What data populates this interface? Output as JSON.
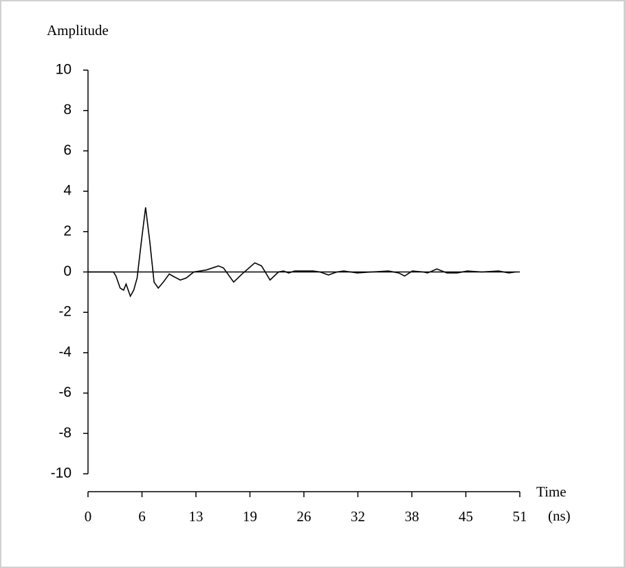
{
  "chart_data": {
    "type": "line",
    "y_label": "Amplitude",
    "x_label": "Time",
    "x_unit": "(ns)",
    "x": [
      0,
      3.0,
      3.3,
      3.8,
      4.2,
      4.5,
      5.0,
      5.4,
      5.8,
      6.3,
      6.8,
      7.3,
      7.8,
      8.3,
      8.9,
      9.6,
      10.0,
      10.9,
      11.6,
      12.5,
      14.0,
      15.4,
      16.0,
      17.2,
      18.2,
      19.7,
      20.5,
      21.5,
      22.5,
      23.1,
      23.7,
      24.4,
      25.3,
      26.6,
      27.4,
      28.4,
      29.4,
      30.2,
      31.8,
      33.5,
      35.5,
      36.7,
      37.4,
      38.3,
      39.6,
      40.1,
      41.2,
      42.4,
      43.6,
      44.8,
      46.5,
      48.5,
      49.7,
      50.5
    ],
    "series": [
      {
        "color": "#000000",
        "values": [
          0,
          0,
          -0.2,
          -0.8,
          -0.9,
          -0.6,
          -1.2,
          -0.9,
          -0.3,
          1.5,
          3.2,
          1.5,
          -0.5,
          -0.8,
          -0.5,
          -0.1,
          -0.2,
          -0.4,
          -0.3,
          0,
          0.1,
          0.3,
          0.2,
          -0.5,
          -0.1,
          0.45,
          0.3,
          -0.4,
          0,
          0.05,
          -0.05,
          0.05,
          0.05,
          0.05,
          0,
          -0.15,
          0,
          0.05,
          -0.05,
          0,
          0.05,
          -0.05,
          -0.2,
          0.05,
          0,
          -0.05,
          0.15,
          -0.05,
          -0.05,
          0.05,
          0,
          0.05,
          -0.05,
          0
        ]
      }
    ],
    "xlim": [
      0,
      51
    ],
    "xticks": [
      0,
      {
        "value": 6.375,
        "label": "6"
      },
      {
        "value": 12.75,
        "label": "13"
      },
      {
        "value": 19.125,
        "label": "19"
      },
      {
        "value": 25.5,
        "label": "26"
      },
      {
        "value": 31.875,
        "label": "32"
      },
      {
        "value": 38.25,
        "label": "38"
      },
      {
        "value": 44.625,
        "label": "45"
      },
      51
    ],
    "ylim": [
      -10,
      10
    ],
    "yticks": [
      -10,
      -8,
      -6,
      -4,
      -2,
      0,
      2,
      4,
      6,
      8,
      10
    ],
    "grid": false
  }
}
